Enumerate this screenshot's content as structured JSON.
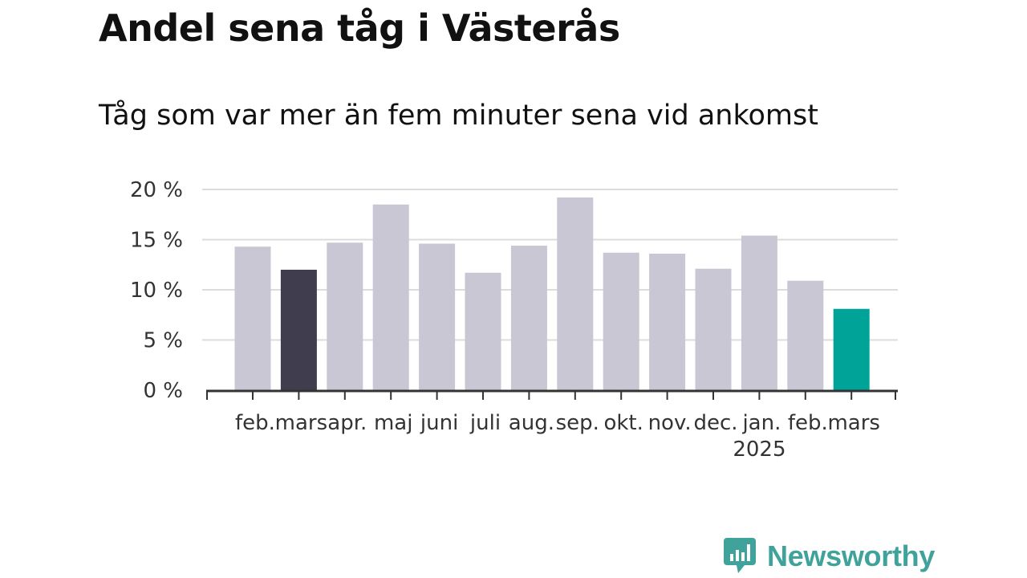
{
  "title": "Andel sena tåg i Västerås",
  "subtitle": "Tåg som var mer än fem minuter sena vid ankomst",
  "brand": {
    "name": "Newsworthy",
    "icon": "newsworthy-logo-icon",
    "color": "#3fa39b"
  },
  "colors": {
    "default": "#c8c7d3",
    "highlight_previous": "#403e4e",
    "highlight_latest": "#00a398",
    "grid": "#dcdcdc",
    "axis": "#333333"
  },
  "chart_data": {
    "type": "bar",
    "title": "Andel sena tåg i Västerås",
    "subtitle": "Tåg som var mer än fem minuter sena vid ankomst",
    "categories": [
      "feb.",
      "mars",
      "apr.",
      "maj",
      "juni",
      "juli",
      "aug.",
      "sep.",
      "okt.",
      "nov.",
      "dec.",
      "jan.",
      "feb.",
      "mars"
    ],
    "tick_labels": [
      "feb.",
      "mars",
      "apr.",
      "maj",
      "juni",
      "juli",
      "aug.",
      "sep.",
      "okt.",
      "nov.",
      "dec.",
      "jan.",
      "feb.",
      "mars"
    ],
    "year_labels": [
      {
        "index": 11,
        "text": "2025"
      }
    ],
    "values": [
      14.3,
      12.0,
      14.7,
      18.5,
      14.6,
      11.7,
      14.4,
      19.2,
      13.7,
      13.6,
      12.1,
      15.4,
      10.9,
      8.1
    ],
    "highlight": {
      "1": "previous",
      "13": "latest"
    },
    "yticks": [
      0,
      5,
      10,
      15,
      20
    ],
    "ytick_labels": [
      "0 %",
      "5 %",
      "10 %",
      "15 %",
      "20 %"
    ],
    "ylim": [
      0,
      20
    ],
    "xlabel": "",
    "ylabel": "",
    "grid": true,
    "legend": "none"
  }
}
